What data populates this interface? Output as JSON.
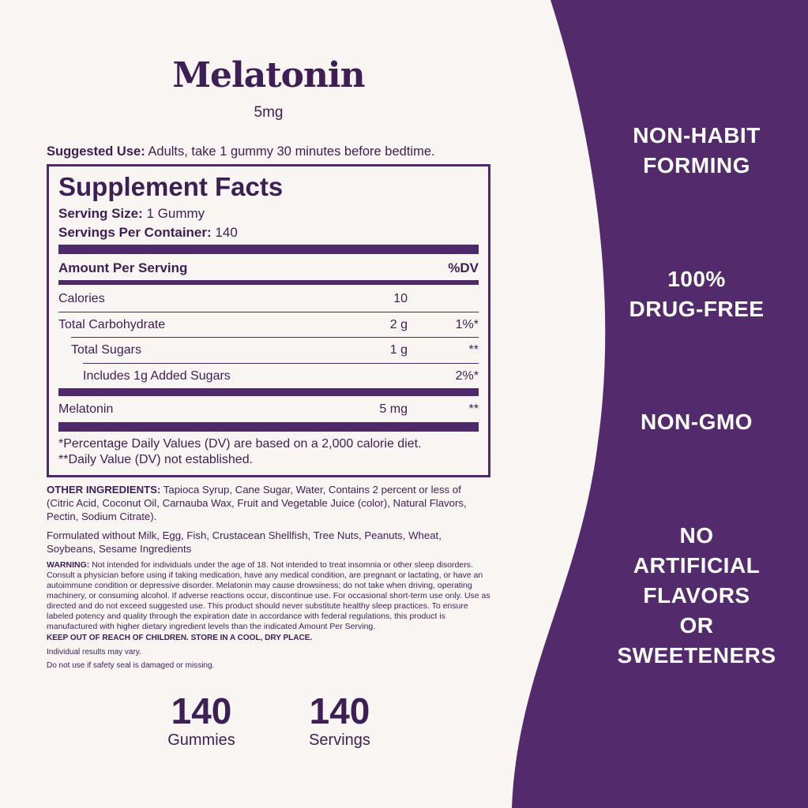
{
  "product": {
    "title": "Melatonin",
    "dose": "5mg"
  },
  "suggested_use": {
    "label": "Suggested Use:",
    "text": "Adults, take 1 gummy 30 minutes before bedtime."
  },
  "facts": {
    "title": "Supplement Facts",
    "serving_size": {
      "label": "Serving Size:",
      "value": "1 Gummy"
    },
    "servings_per_container": {
      "label": "Servings Per Container:",
      "value": "140"
    },
    "header": {
      "amount": "Amount Per Serving",
      "dv": "%DV"
    },
    "rows": [
      {
        "name": "Calories",
        "amount": "10"
      },
      {
        "name": "Total Carbohydrate",
        "amount": "2 g",
        "dv": "1%*"
      },
      {
        "name": "Total Sugars",
        "amount": "1 g",
        "dv": "**"
      },
      {
        "name": "Includes 1g Added Sugars",
        "dv": "2%*"
      },
      {
        "name": "Melatonin",
        "amount": "5 mg",
        "dv": "**"
      }
    ],
    "footnotes": [
      "*Percentage Daily Values (DV) are based on a 2,000 calorie diet.",
      "**Daily Value (DV) not established."
    ]
  },
  "other_ingredients": {
    "label": "OTHER INGREDIENTS:",
    "text": "Tapioca Syrup, Cane Sugar, Water, Contains 2 percent or less of (Citric Acid, Coconut Oil, Carnauba Wax, Fruit and Vegetable Juice (color), Natural Flavors, Pectin, Sodium Citrate)."
  },
  "allergens": "Formulated without Milk, Egg, Fish, Crustacean Shellfish, Tree Nuts, Peanuts, Wheat, Soybeans, Sesame Ingredients",
  "warning": {
    "label": "WARNING:",
    "text": "Not intended for individuals under the age of 18. Not intended to treat insomnia or other sleep disorders. Consult a physician before using if taking medication, have any medical condition, are pregnant or lactating, or have an autoimmune condition or depressive disorder. Melatonin may cause drowsiness; do not take when driving, operating machinery, or consuming alcohol. If adverse reactions occur, discontinue use. For occasional short-term use only. Use as directed and do not exceed suggested use. This product should never substitute healthy sleep practices. To ensure labeled potency and quality through the expiration date in accordance with federal regulations, this product is manufactured with higher dietary ingredient levels than the indicated Amount Per Serving."
  },
  "keep_out": "KEEP OUT OF REACH OF CHILDREN. STORE IN A COOL, DRY PLACE.",
  "results": "Individual results may vary.",
  "seal": "Do not use if safety seal is damaged or missing.",
  "counts": [
    {
      "number": "140",
      "label": "Gummies"
    },
    {
      "number": "140",
      "label": "Servings"
    }
  ],
  "claims": [
    [
      "NON-HABIT",
      "FORMING"
    ],
    [
      "100%",
      "DRUG-FREE"
    ],
    [
      "NON-GMO"
    ],
    [
      "NO",
      "ARTIFICIAL",
      "FLAVORS",
      "OR",
      "SWEETENERS"
    ]
  ]
}
